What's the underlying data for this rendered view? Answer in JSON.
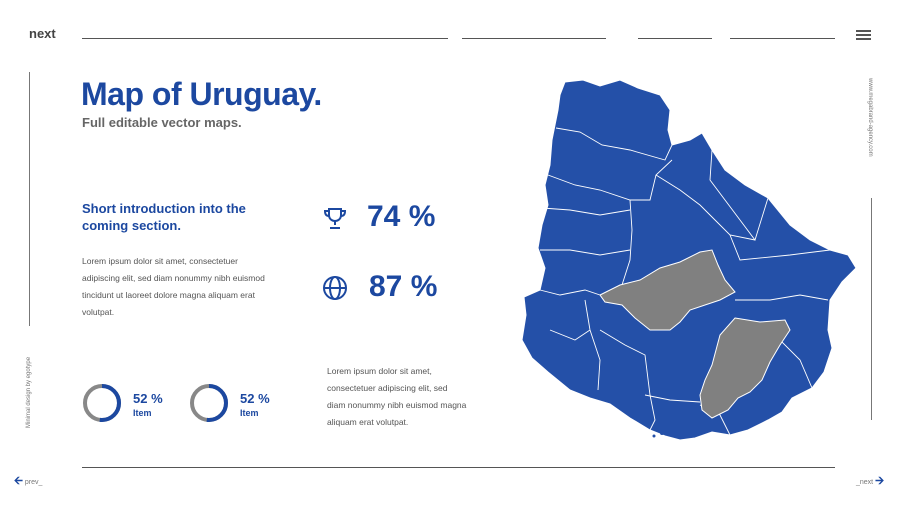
{
  "header": {
    "brand": "next"
  },
  "side": {
    "left_caption": "Minimal design by egotype",
    "right_caption": "www.megabrand-agency.com"
  },
  "main": {
    "title": "Map of Uruguay.",
    "subtitle": "Full editable vector maps.",
    "intro_heading": "Short introduction into the coming section.",
    "body_text_1": "Lorem ipsum dolor sit amet, consectetuer adipiscing elit, sed diam nonummy nibh euismod tincidunt ut laoreet dolore magna aliquam erat volutpat.",
    "body_text_2": "Lorem ipsum dolor sit amet, consectetuer adipiscing elit, sed diam nonummy nibh euismod magna aliquam erat volutpat."
  },
  "stats": [
    {
      "icon": "trophy-icon",
      "value": "74 %"
    },
    {
      "icon": "globe-icon",
      "value": "87 %"
    }
  ],
  "rings": [
    {
      "value": "52 %",
      "label": "Item",
      "fraction": 0.52
    },
    {
      "value": "52 %",
      "label": "Item",
      "fraction": 0.52
    }
  ],
  "footer": {
    "prev": "prev_",
    "next": "_next"
  },
  "colors": {
    "accent": "#1c48a0",
    "map_fill": "#2450a8",
    "highlight": "#808080",
    "ring_track": "#888888"
  }
}
